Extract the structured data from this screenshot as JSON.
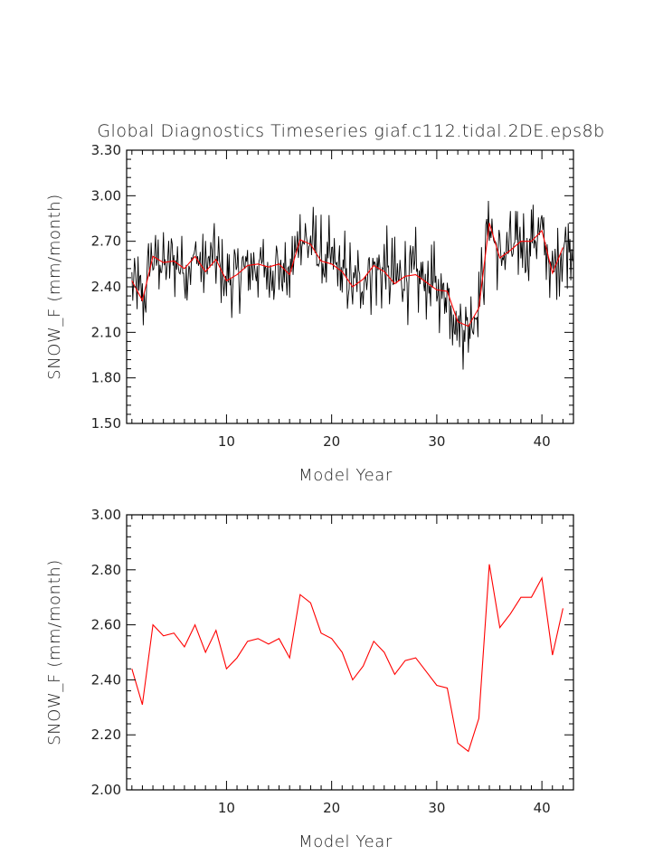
{
  "chart_data": [
    {
      "type": "line",
      "title": "Global Diagnostics Timeseries giaf.c112.tidal.2DE.eps8b",
      "xlabel": "Model Year",
      "ylabel": "SNOW_F (mm/month)",
      "xlim": [
        0.5,
        43
      ],
      "ylim": [
        1.5,
        3.3
      ],
      "xticks": [
        10,
        20,
        30,
        40
      ],
      "yticks": [
        1.5,
        1.8,
        2.1,
        2.4,
        2.7,
        3.0,
        3.3
      ],
      "ytick_labels": [
        "1.50",
        "1.80",
        "2.10",
        "2.40",
        "2.70",
        "3.00",
        "3.30"
      ],
      "series": [
        {
          "color": "#000000",
          "resolution": "monthly",
          "seed_annual": [
            2.44,
            2.31,
            2.6,
            2.56,
            2.57,
            2.52,
            2.6,
            2.5,
            2.58,
            2.44,
            2.48,
            2.54,
            2.55,
            2.53,
            2.55,
            2.48,
            2.71,
            2.68,
            2.57,
            2.55,
            2.5,
            2.4,
            2.45,
            2.54,
            2.5,
            2.42,
            2.47,
            2.48,
            2.43,
            2.38,
            2.37,
            2.17,
            2.14,
            2.26,
            2.82,
            2.59,
            2.64,
            2.7,
            2.7,
            2.77,
            2.49,
            2.66
          ],
          "amplitude": 0.33
        },
        {
          "color": "#ff0000",
          "resolution": "annual",
          "x": [
            1,
            2,
            3,
            4,
            5,
            6,
            7,
            8,
            9,
            10,
            11,
            12,
            13,
            14,
            15,
            16,
            17,
            18,
            19,
            20,
            21,
            22,
            23,
            24,
            25,
            26,
            27,
            28,
            29,
            30,
            31,
            32,
            33,
            34,
            35,
            36,
            37,
            38,
            39,
            40,
            41,
            42
          ],
          "values": [
            2.44,
            2.31,
            2.6,
            2.56,
            2.57,
            2.52,
            2.6,
            2.5,
            2.58,
            2.44,
            2.48,
            2.54,
            2.55,
            2.53,
            2.55,
            2.48,
            2.71,
            2.68,
            2.57,
            2.55,
            2.5,
            2.4,
            2.45,
            2.54,
            2.5,
            2.42,
            2.47,
            2.48,
            2.43,
            2.38,
            2.37,
            2.17,
            2.14,
            2.26,
            2.82,
            2.59,
            2.64,
            2.7,
            2.7,
            2.77,
            2.49,
            2.66
          ]
        }
      ]
    },
    {
      "type": "line",
      "title": "",
      "xlabel": "Model Year",
      "ylabel": "SNOW_F (mm/month)",
      "xlim": [
        0.5,
        43
      ],
      "ylim": [
        2.0,
        3.0
      ],
      "xticks": [
        10,
        20,
        30,
        40
      ],
      "yticks": [
        2.0,
        2.2,
        2.4,
        2.6,
        2.8,
        3.0
      ],
      "ytick_labels": [
        "2.00",
        "2.20",
        "2.40",
        "2.60",
        "2.80",
        "3.00"
      ],
      "series": [
        {
          "color": "#ff0000",
          "resolution": "annual",
          "x": [
            1,
            2,
            3,
            4,
            5,
            6,
            7,
            8,
            9,
            10,
            11,
            12,
            13,
            14,
            15,
            16,
            17,
            18,
            19,
            20,
            21,
            22,
            23,
            24,
            25,
            26,
            27,
            28,
            29,
            30,
            31,
            32,
            33,
            34,
            35,
            36,
            37,
            38,
            39,
            40,
            41,
            42
          ],
          "values": [
            2.44,
            2.31,
            2.6,
            2.56,
            2.57,
            2.52,
            2.6,
            2.5,
            2.58,
            2.44,
            2.48,
            2.54,
            2.55,
            2.53,
            2.55,
            2.48,
            2.71,
            2.68,
            2.57,
            2.55,
            2.5,
            2.4,
            2.45,
            2.54,
            2.5,
            2.42,
            2.47,
            2.48,
            2.43,
            2.38,
            2.37,
            2.17,
            2.14,
            2.26,
            2.82,
            2.59,
            2.64,
            2.7,
            2.7,
            2.77,
            2.49,
            2.66
          ]
        }
      ]
    }
  ]
}
